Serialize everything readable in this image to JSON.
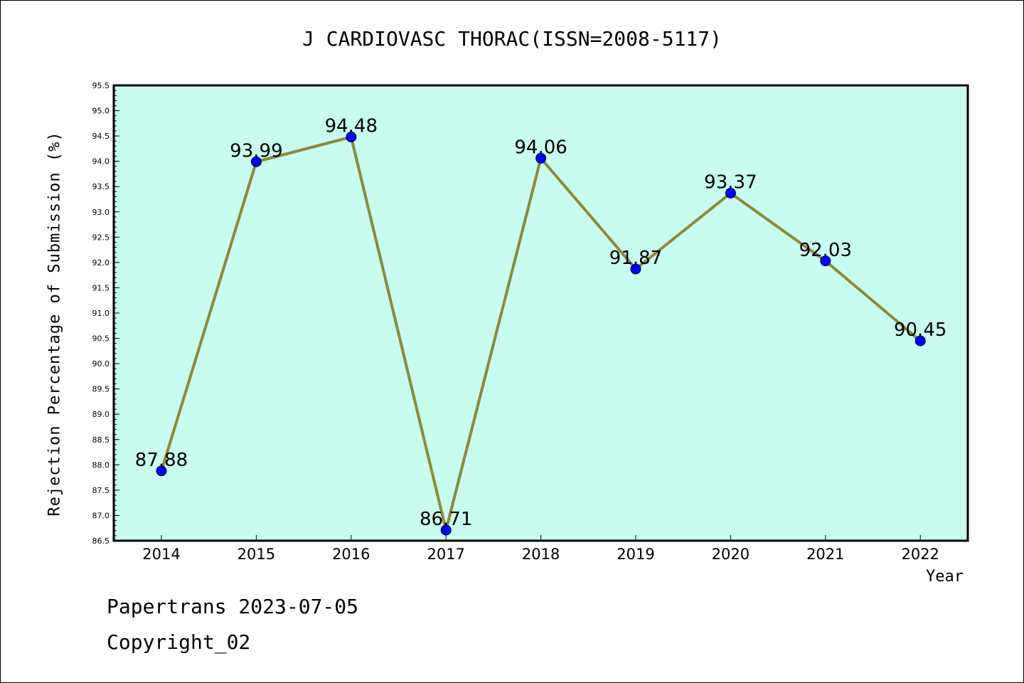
{
  "chart_data": {
    "type": "line",
    "title": "J CARDIOVASC THORAC(ISSN=2008-5117)",
    "xlabel": "Year",
    "ylabel": "Rejection Percentage of Submission (%)",
    "categories": [
      "2014",
      "2015",
      "2016",
      "2017",
      "2018",
      "2019",
      "2020",
      "2021",
      "2022"
    ],
    "values": [
      87.88,
      93.99,
      94.48,
      86.71,
      94.06,
      91.87,
      93.37,
      92.03,
      90.45
    ],
    "value_labels": [
      "87.88",
      "93.99",
      "94.48",
      "86.71",
      "94.06",
      "91.87",
      "93.37",
      "92.03",
      "90.45"
    ],
    "y_ticks": [
      "86.5",
      "87.0",
      "87.5",
      "88.0",
      "88.5",
      "89.0",
      "89.5",
      "90.0",
      "90.5",
      "91.0",
      "91.5",
      "92.0",
      "92.5",
      "93.0",
      "93.5",
      "94.0",
      "94.5",
      "95.0",
      "95.5"
    ],
    "ylim": [
      86.5,
      95.5
    ],
    "grid": false,
    "colors": {
      "plot_background": "#c8fcee",
      "line": "#8c8a3a",
      "marker": "#0000ff"
    }
  },
  "footer": {
    "line1": "Papertrans 2023-07-05",
    "line2": "Copyright_02"
  }
}
